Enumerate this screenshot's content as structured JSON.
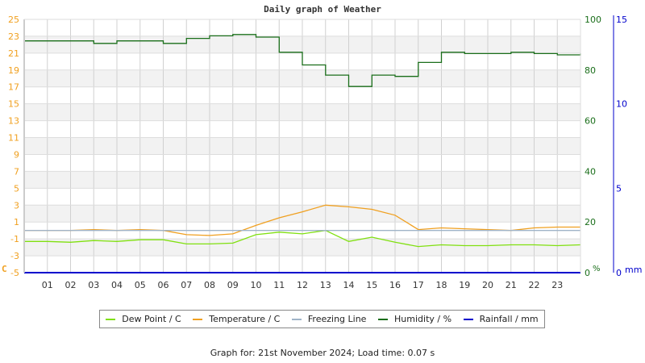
{
  "chart_data": {
    "type": "line",
    "title": "Daily graph of Weather",
    "xlabel": "",
    "x_ticks": [
      "01",
      "02",
      "03",
      "04",
      "05",
      "06",
      "07",
      "08",
      "09",
      "10",
      "11",
      "12",
      "13",
      "14",
      "15",
      "16",
      "17",
      "18",
      "19",
      "20",
      "21",
      "22",
      "23"
    ],
    "axes": {
      "left": {
        "unit": "C",
        "min": -5,
        "max": 25,
        "ticks": [
          25,
          23,
          21,
          19,
          17,
          15,
          13,
          11,
          9,
          7,
          5,
          3,
          1,
          -1,
          -3,
          -5
        ],
        "color": "#f0a020"
      },
      "right_humidity": {
        "unit": "%",
        "min": 0,
        "max": 100,
        "ticks": [
          100,
          80,
          60,
          40,
          20,
          0
        ],
        "color": "#1a6e1a"
      },
      "right_rain": {
        "unit": "mm",
        "min": 0,
        "max": 15,
        "ticks": [
          15,
          10,
          5,
          0
        ],
        "color": "#0000cc"
      }
    },
    "grid": true,
    "legend_position": "bottom",
    "series": [
      {
        "name": "Dew Point / C",
        "color": "#80e010",
        "axis": "left",
        "x": [
          0,
          1,
          2,
          3,
          4,
          5,
          6,
          7,
          8,
          9,
          10,
          11,
          12,
          13,
          14,
          15,
          16,
          17,
          18,
          19,
          20,
          21,
          22,
          23,
          24
        ],
        "values": [
          -1.3,
          -1.3,
          -1.4,
          -1.2,
          -1.3,
          -1.1,
          -1.1,
          -1.6,
          -1.6,
          -1.5,
          -0.5,
          -0.2,
          -0.4,
          0.0,
          -1.3,
          -0.8,
          -1.4,
          -1.9,
          -1.7,
          -1.8,
          -1.8,
          -1.7,
          -1.7,
          -1.8,
          -1.7
        ]
      },
      {
        "name": "Temperature / C",
        "color": "#f0a020",
        "axis": "left",
        "x": [
          0,
          1,
          2,
          3,
          4,
          5,
          6,
          7,
          8,
          9,
          10,
          11,
          12,
          13,
          14,
          15,
          16,
          17,
          18,
          19,
          20,
          21,
          22,
          23,
          24
        ],
        "values": [
          0.0,
          0.0,
          0.0,
          0.1,
          0.0,
          0.1,
          0.0,
          -0.5,
          -0.6,
          -0.4,
          0.6,
          1.5,
          2.2,
          3.0,
          2.8,
          2.5,
          1.8,
          0.1,
          0.3,
          0.2,
          0.1,
          0.0,
          0.3,
          0.4,
          0.4
        ]
      },
      {
        "name": "Freezing Line",
        "color": "#a0b4c8",
        "axis": "left",
        "x": [
          0,
          24
        ],
        "values": [
          0,
          0
        ]
      },
      {
        "name": "Humidity / %",
        "color": "#1a6e1a",
        "axis": "right_humidity",
        "x": [
          0,
          1,
          2,
          3,
          4,
          5,
          6,
          7,
          8,
          9,
          10,
          11,
          12,
          13,
          14,
          15,
          16,
          17,
          18,
          19,
          20,
          21,
          22,
          23,
          24
        ],
        "values": [
          91.5,
          91.5,
          91.5,
          90.5,
          91.5,
          91.5,
          90.5,
          92.5,
          93.5,
          94.0,
          93.0,
          87.0,
          82.0,
          78.0,
          73.5,
          78.0,
          77.5,
          83.0,
          87.0,
          86.5,
          86.5,
          87.0,
          86.5,
          86.0,
          86.5
        ]
      },
      {
        "name": "Rainfall / mm",
        "color": "#0000cc",
        "axis": "right_rain",
        "x": [
          0,
          24
        ],
        "values": [
          0,
          0
        ]
      }
    ]
  },
  "legend": [
    {
      "label": "Dew Point / C",
      "color": "#80e010"
    },
    {
      "label": "Temperature / C",
      "color": "#f0a020"
    },
    {
      "label": "Freezing Line",
      "color": "#a0b4c8"
    },
    {
      "label": "Humidity / %",
      "color": "#1a6e1a"
    },
    {
      "label": "Rainfall / mm",
      "color": "#0000cc"
    }
  ],
  "footer": {
    "text": "Graph for: 21st November 2024; Load time: 0.07 s"
  }
}
